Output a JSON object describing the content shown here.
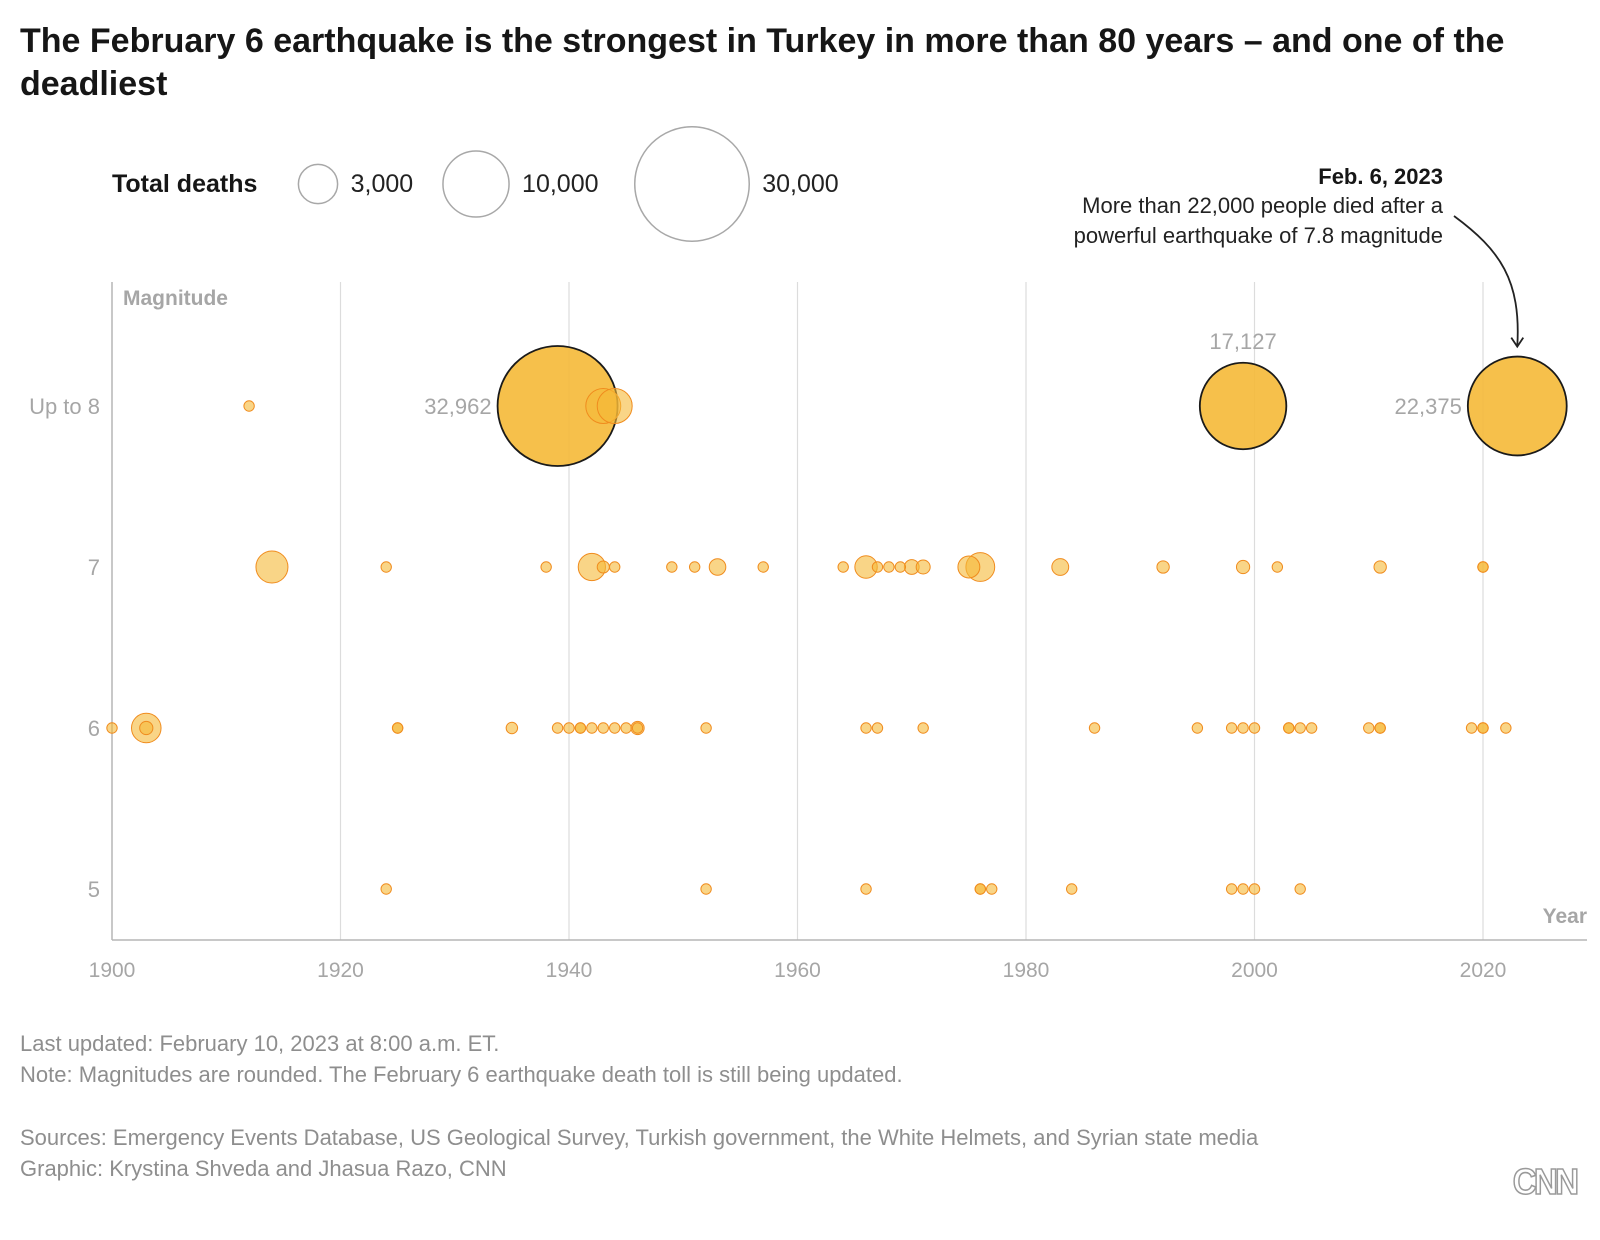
{
  "title": "The February 6 earthquake is the strongest in Turkey in more than 80 years – and one of the deadliest",
  "legend": {
    "label": "Total deaths",
    "sizes": [
      {
        "value": 3000,
        "label": "3,000"
      },
      {
        "value": 10000,
        "label": "10,000"
      },
      {
        "value": 30000,
        "label": "30,000"
      }
    ]
  },
  "annotation": {
    "title": "Feb. 6, 2023",
    "lines": [
      "More than 22,000 people died after a",
      "powerful earthquake of 7.8 magnitude"
    ]
  },
  "colors": {
    "bubble_fill": "#f5b937",
    "bubble_stroke": "#f08c1e",
    "highlight_stroke": "#1a1a1a",
    "axis_text": "#a6a6a6",
    "gridline": "#dcdcdc"
  },
  "footer": {
    "updated": "Last updated: February 10, 2023 at 8:00 a.m. ET.",
    "note": "Note: Magnitudes are rounded. The February 6 earthquake death toll is still being updated.",
    "sources": "Sources: Emergency Events Database, US Geological Survey, Turkish government, the White Helmets, and Syrian state media",
    "graphic": "Graphic: Krystina Shveda and Jhasua Razo, CNN",
    "logo": "CNN"
  },
  "chart_data": {
    "type": "scatter",
    "encoding": "bubble",
    "title": "The February 6 earthquake is the strongest in Turkey in more than 80 years – and one of the deadliest",
    "xlabel": "Year",
    "ylabel": "Magnitude",
    "xlim": [
      1900,
      2029
    ],
    "ylim": [
      4.7,
      8.6
    ],
    "x_ticks": [
      {
        "value": 1900,
        "label": "1900"
      },
      {
        "value": 1920,
        "label": "1920"
      },
      {
        "value": 1940,
        "label": "1940"
      },
      {
        "value": 1960,
        "label": "1960"
      },
      {
        "value": 1980,
        "label": "1980"
      },
      {
        "value": 2000,
        "label": "2000"
      },
      {
        "value": 2020,
        "label": "2020"
      }
    ],
    "y_ticks": [
      {
        "value": 8,
        "label": "Up to 8"
      },
      {
        "value": 7,
        "label": "7"
      },
      {
        "value": 6,
        "label": "6"
      },
      {
        "value": 5,
        "label": "5"
      }
    ],
    "grid": "vertical",
    "size_field": "deaths",
    "points": [
      {
        "year": 1912,
        "magnitude": 8,
        "deaths": 220
      },
      {
        "year": 1939,
        "magnitude": 8,
        "deaths": 32962,
        "label": "32,962",
        "highlight": true
      },
      {
        "year": 1943,
        "magnitude": 8,
        "deaths": 2800
      },
      {
        "year": 1944,
        "magnitude": 8,
        "deaths": 2800
      },
      {
        "year": 1999,
        "magnitude": 8,
        "deaths": 17127,
        "label": "17,127",
        "highlight": true
      },
      {
        "year": 2023,
        "magnitude": 8,
        "deaths": 22375,
        "label": "22,375",
        "highlight": true
      },
      {
        "year": 1914,
        "magnitude": 7,
        "deaths": 2344
      },
      {
        "year": 1924,
        "magnitude": 7,
        "deaths": 60
      },
      {
        "year": 1938,
        "magnitude": 7,
        "deaths": 160
      },
      {
        "year": 1942,
        "magnitude": 7,
        "deaths": 1700
      },
      {
        "year": 1943,
        "magnitude": 7,
        "deaths": 336
      },
      {
        "year": 1944,
        "magnitude": 7,
        "deaths": 70
      },
      {
        "year": 1949,
        "magnitude": 7,
        "deaths": 200
      },
      {
        "year": 1951,
        "magnitude": 7,
        "deaths": 90
      },
      {
        "year": 1953,
        "magnitude": 7,
        "deaths": 630
      },
      {
        "year": 1957,
        "magnitude": 7,
        "deaths": 70
      },
      {
        "year": 1964,
        "magnitude": 7,
        "deaths": 60
      },
      {
        "year": 1966,
        "magnitude": 7,
        "deaths": 1150
      },
      {
        "year": 1967,
        "magnitude": 7,
        "deaths": 200
      },
      {
        "year": 1968,
        "magnitude": 7,
        "deaths": 90
      },
      {
        "year": 1969,
        "magnitude": 7,
        "deaths": 70
      },
      {
        "year": 1970,
        "magnitude": 7,
        "deaths": 500
      },
      {
        "year": 1971,
        "magnitude": 7,
        "deaths": 450
      },
      {
        "year": 1975,
        "magnitude": 7,
        "deaths": 1100
      },
      {
        "year": 1976,
        "magnitude": 7,
        "deaths": 1900
      },
      {
        "year": 1983,
        "magnitude": 7,
        "deaths": 650
      },
      {
        "year": 1992,
        "magnitude": 7,
        "deaths": 350
      },
      {
        "year": 1999,
        "magnitude": 7,
        "deaths": 400
      },
      {
        "year": 2002,
        "magnitude": 7,
        "deaths": 60
      },
      {
        "year": 2011,
        "magnitude": 7,
        "deaths": 350
      },
      {
        "year": 2020,
        "magnitude": 7,
        "deaths": 115
      },
      {
        "year": 2020,
        "magnitude": 7,
        "deaths": 60
      },
      {
        "year": 1900,
        "magnitude": 6,
        "deaths": 60
      },
      {
        "year": 1903,
        "magnitude": 6,
        "deaths": 2000
      },
      {
        "year": 1903,
        "magnitude": 6,
        "deaths": 400
      },
      {
        "year": 1925,
        "magnitude": 6,
        "deaths": 130
      },
      {
        "year": 1925,
        "magnitude": 6,
        "deaths": 60
      },
      {
        "year": 1935,
        "magnitude": 6,
        "deaths": 300
      },
      {
        "year": 1939,
        "magnitude": 6,
        "deaths": 80
      },
      {
        "year": 1940,
        "magnitude": 6,
        "deaths": 60
      },
      {
        "year": 1941,
        "magnitude": 6,
        "deaths": 200
      },
      {
        "year": 1941,
        "magnitude": 6,
        "deaths": 100
      },
      {
        "year": 1942,
        "magnitude": 6,
        "deaths": 60
      },
      {
        "year": 1943,
        "magnitude": 6,
        "deaths": 200
      },
      {
        "year": 1944,
        "magnitude": 6,
        "deaths": 60
      },
      {
        "year": 1945,
        "magnitude": 6,
        "deaths": 200
      },
      {
        "year": 1946,
        "magnitude": 6,
        "deaths": 400
      },
      {
        "year": 1946,
        "magnitude": 6,
        "deaths": 100
      },
      {
        "year": 1952,
        "magnitude": 6,
        "deaths": 110
      },
      {
        "year": 1966,
        "magnitude": 6,
        "deaths": 70
      },
      {
        "year": 1967,
        "magnitude": 6,
        "deaths": 110
      },
      {
        "year": 1971,
        "magnitude": 6,
        "deaths": 80
      },
      {
        "year": 1986,
        "magnitude": 6,
        "deaths": 60
      },
      {
        "year": 1995,
        "magnitude": 6,
        "deaths": 90
      },
      {
        "year": 1998,
        "magnitude": 6,
        "deaths": 140
      },
      {
        "year": 1999,
        "magnitude": 6,
        "deaths": 60
      },
      {
        "year": 2000,
        "magnitude": 6,
        "deaths": 60
      },
      {
        "year": 2003,
        "magnitude": 6,
        "deaths": 170
      },
      {
        "year": 2003,
        "magnitude": 6,
        "deaths": 60
      },
      {
        "year": 2004,
        "magnitude": 6,
        "deaths": 60
      },
      {
        "year": 2005,
        "magnitude": 6,
        "deaths": 60
      },
      {
        "year": 2010,
        "magnitude": 6,
        "deaths": 80
      },
      {
        "year": 2011,
        "magnitude": 6,
        "deaths": 60
      },
      {
        "year": 2011,
        "magnitude": 6,
        "deaths": 60
      },
      {
        "year": 2019,
        "magnitude": 6,
        "deaths": 60
      },
      {
        "year": 2020,
        "magnitude": 6,
        "deaths": 60
      },
      {
        "year": 2020,
        "magnitude": 6,
        "deaths": 60
      },
      {
        "year": 2022,
        "magnitude": 6,
        "deaths": 50
      },
      {
        "year": 1924,
        "magnitude": 5,
        "deaths": 60
      },
      {
        "year": 1952,
        "magnitude": 5,
        "deaths": 60
      },
      {
        "year": 1966,
        "magnitude": 5,
        "deaths": 60
      },
      {
        "year": 1976,
        "magnitude": 5,
        "deaths": 60
      },
      {
        "year": 1976,
        "magnitude": 5,
        "deaths": 60
      },
      {
        "year": 1977,
        "magnitude": 5,
        "deaths": 60
      },
      {
        "year": 1984,
        "magnitude": 5,
        "deaths": 60
      },
      {
        "year": 1998,
        "magnitude": 5,
        "deaths": 60
      },
      {
        "year": 1999,
        "magnitude": 5,
        "deaths": 60
      },
      {
        "year": 2000,
        "magnitude": 5,
        "deaths": 60
      },
      {
        "year": 2004,
        "magnitude": 5,
        "deaths": 60
      }
    ]
  }
}
